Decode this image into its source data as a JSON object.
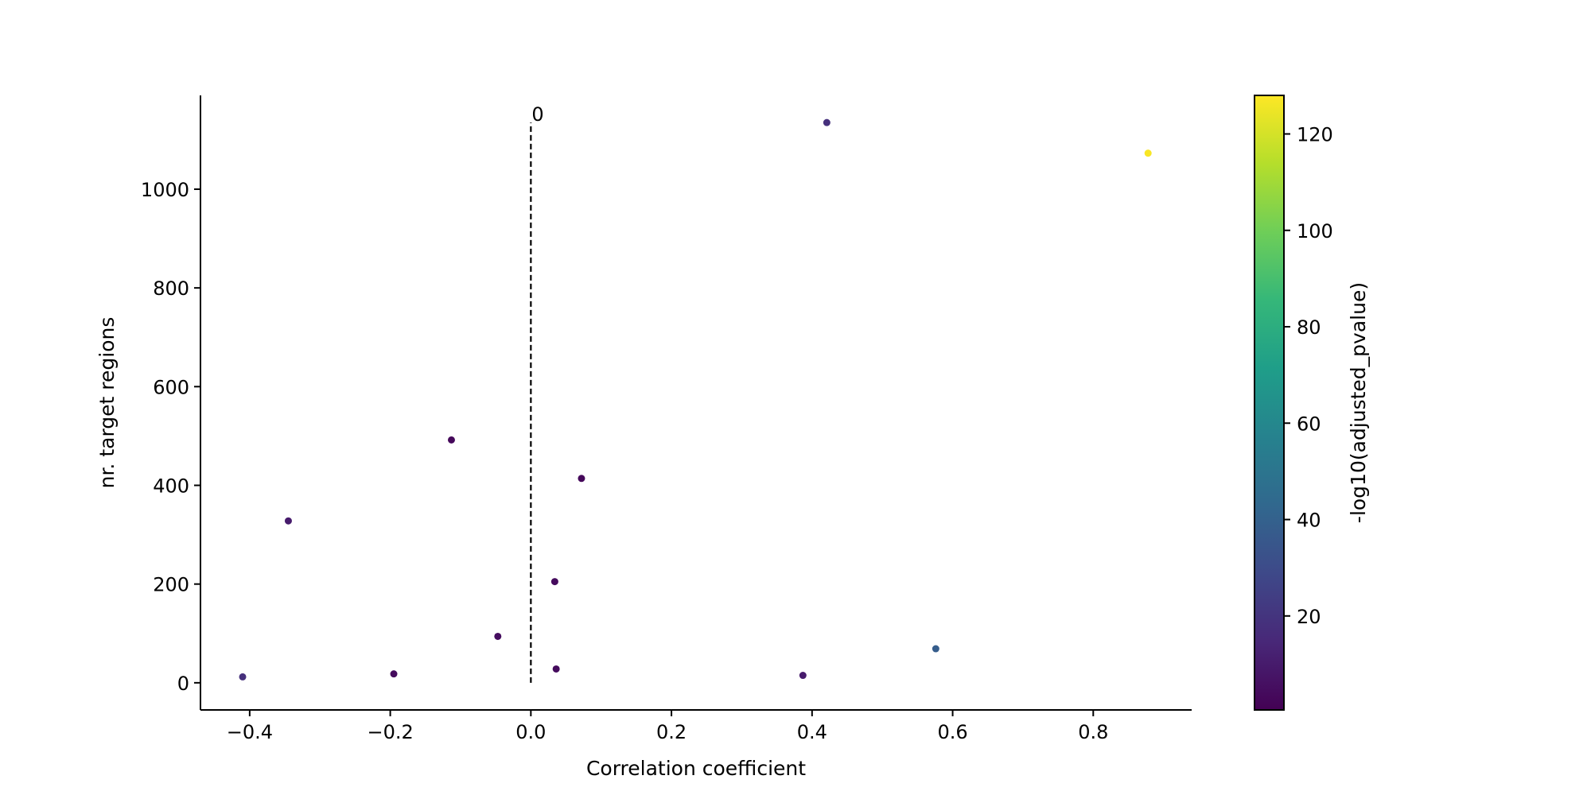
{
  "chart_data": {
    "type": "scatter",
    "xlabel": "Correlation coefficient",
    "ylabel": "nr. target regions",
    "xlim": [
      -0.47,
      0.94
    ],
    "ylim": [
      -55,
      1190
    ],
    "x_ticks": [
      -0.4,
      -0.2,
      0.0,
      0.2,
      0.4,
      0.6,
      0.8
    ],
    "x_tick_labels": [
      "−0.4",
      "−0.2",
      "0.0",
      "0.2",
      "0.4",
      "0.6",
      "0.8"
    ],
    "y_ticks": [
      0,
      200,
      400,
      600,
      800,
      1000
    ],
    "y_tick_labels": [
      "0",
      "200",
      "400",
      "600",
      "800",
      "1000"
    ],
    "reference_line": {
      "x": 0,
      "y_from": 0,
      "y_to": 1135,
      "label": "0",
      "style": "dashed"
    },
    "points": [
      {
        "x": -0.41,
        "y": 12,
        "c": 18
      },
      {
        "x": -0.345,
        "y": 328,
        "c": 10
      },
      {
        "x": -0.195,
        "y": 18,
        "c": 4
      },
      {
        "x": -0.113,
        "y": 492,
        "c": 3
      },
      {
        "x": -0.047,
        "y": 94,
        "c": 5
      },
      {
        "x": 0.034,
        "y": 205,
        "c": 4
      },
      {
        "x": 0.036,
        "y": 28,
        "c": 4
      },
      {
        "x": 0.072,
        "y": 414,
        "c": 3
      },
      {
        "x": 0.387,
        "y": 15,
        "c": 10
      },
      {
        "x": 0.421,
        "y": 1135,
        "c": 18
      },
      {
        "x": 0.576,
        "y": 69,
        "c": 38
      },
      {
        "x": 0.878,
        "y": 1073,
        "c": 127
      }
    ],
    "colorbar": {
      "label": "-log10(adjusted_pvalue)",
      "colormap": "viridis",
      "range": [
        0.5,
        128
      ],
      "ticks": [
        20,
        40,
        60,
        80,
        100,
        120
      ],
      "tick_labels": [
        "20",
        "40",
        "60",
        "80",
        "100",
        "120"
      ]
    },
    "colors": {
      "axis": "#000000",
      "viridis_stops": [
        "#440154",
        "#482878",
        "#3e4989",
        "#31688e",
        "#26828e",
        "#1f9e89",
        "#35b779",
        "#6ece58",
        "#b5de2b",
        "#fde725"
      ]
    }
  }
}
